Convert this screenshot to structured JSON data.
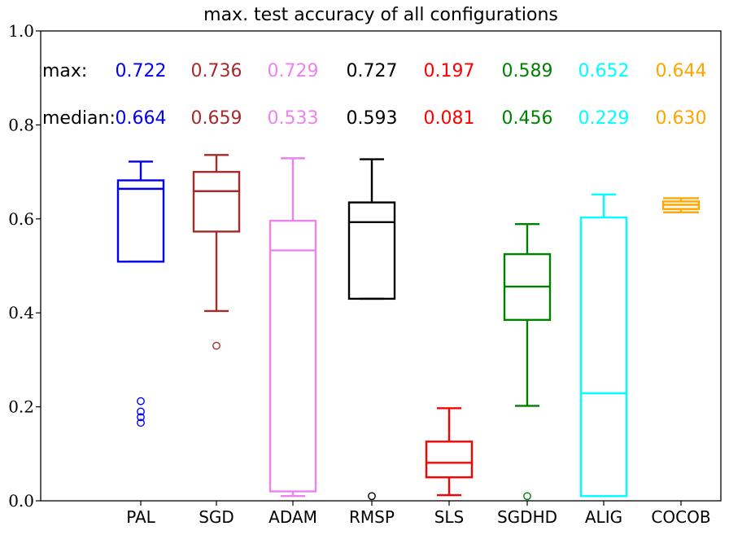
{
  "chart_data": {
    "type": "box",
    "title": "max. test accuracy of all configurations",
    "xlabel": "",
    "ylabel": "",
    "ylim": [
      0.0,
      1.0
    ],
    "yticks": [
      "0.0",
      "0.2",
      "0.4",
      "0.6",
      "0.8",
      "1.0"
    ],
    "ytick_values": [
      0.0,
      0.2,
      0.4,
      0.6,
      0.8,
      1.0
    ],
    "grid": false,
    "row_labels": {
      "max": "max:",
      "median": "median:"
    },
    "categories": [
      "PAL",
      "SGD",
      "ADAM",
      "RMSP",
      "SLS",
      "SGDHD",
      "ALIG",
      "COCOB"
    ],
    "colors": [
      "#0000ee",
      "#a52a2a",
      "#ee82ee",
      "#000000",
      "#ff0000",
      "#008000",
      "#00ffff",
      "#ffa500"
    ],
    "max_labels": [
      "0.722",
      "0.736",
      "0.729",
      "0.727",
      "0.197",
      "0.589",
      "0.652",
      "0.644"
    ],
    "median_labels": [
      "0.664",
      "0.659",
      "0.533",
      "0.593",
      "0.081",
      "0.456",
      "0.229",
      "0.630"
    ],
    "boxes": [
      {
        "name": "PAL",
        "whisker_low": 0.509,
        "q1": 0.509,
        "median": 0.664,
        "q3": 0.682,
        "whisker_high": 0.722,
        "outliers": [
          0.212,
          0.19,
          0.178,
          0.166
        ]
      },
      {
        "name": "SGD",
        "whisker_low": 0.404,
        "q1": 0.573,
        "median": 0.659,
        "q3": 0.7,
        "whisker_high": 0.736,
        "outliers": [
          0.33
        ]
      },
      {
        "name": "ADAM",
        "whisker_low": 0.01,
        "q1": 0.02,
        "median": 0.533,
        "q3": 0.596,
        "whisker_high": 0.729,
        "outliers": []
      },
      {
        "name": "RMSP",
        "whisker_low": 0.43,
        "q1": 0.43,
        "median": 0.593,
        "q3": 0.635,
        "whisker_high": 0.727,
        "outliers": [
          0.01
        ]
      },
      {
        "name": "SLS",
        "whisker_low": 0.012,
        "q1": 0.05,
        "median": 0.081,
        "q3": 0.126,
        "whisker_high": 0.197,
        "outliers": []
      },
      {
        "name": "SGDHD",
        "whisker_low": 0.202,
        "q1": 0.385,
        "median": 0.456,
        "q3": 0.525,
        "whisker_high": 0.589,
        "outliers": [
          0.01
        ]
      },
      {
        "name": "ALIG",
        "whisker_low": 0.01,
        "q1": 0.01,
        "median": 0.229,
        "q3": 0.603,
        "whisker_high": 0.652,
        "outliers": []
      },
      {
        "name": "COCOB",
        "whisker_low": 0.614,
        "q1": 0.621,
        "median": 0.63,
        "q3": 0.637,
        "whisker_high": 0.644,
        "outliers": []
      }
    ]
  }
}
